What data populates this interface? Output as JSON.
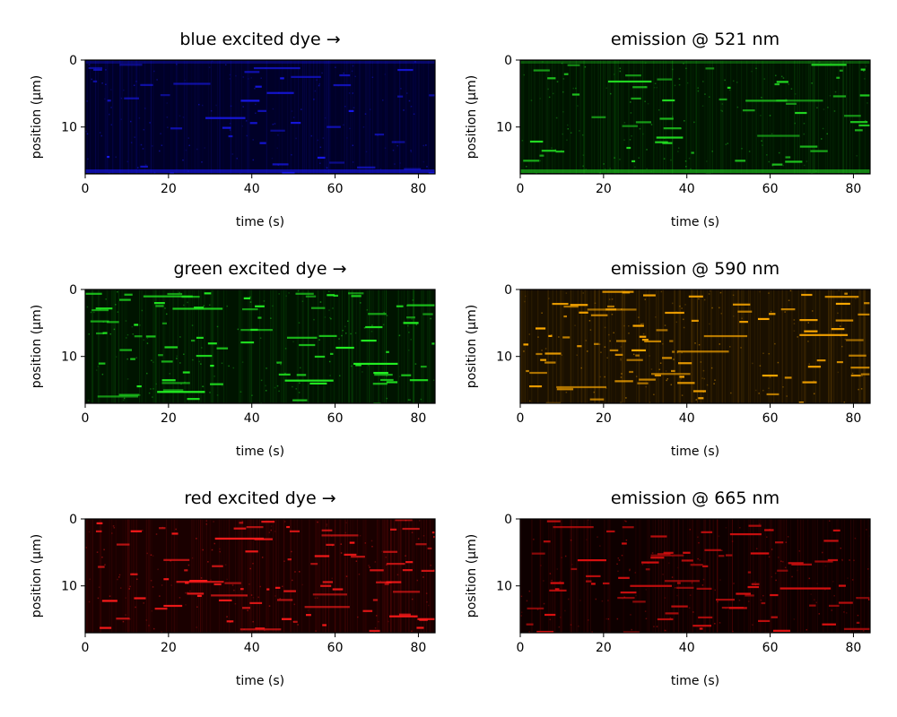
{
  "chart_data": [
    {
      "type": "heatmap",
      "title": "blue excited dye →",
      "xlabel": "time (s)",
      "ylabel": "position (μm)",
      "xlim": [
        0,
        84
      ],
      "ylim": [
        0,
        17
      ],
      "y_inverted": true,
      "xticks": [
        "0",
        "20",
        "40",
        "60",
        "80"
      ],
      "yticks": [
        "0",
        "10"
      ],
      "colormap_color": "#1a1aff",
      "background": "#000028",
      "grid": false
    },
    {
      "type": "heatmap",
      "title": "emission @ 521 nm",
      "xlabel": "time (s)",
      "ylabel": "position (μm)",
      "xlim": [
        0,
        84
      ],
      "ylim": [
        0,
        17
      ],
      "y_inverted": true,
      "xticks": [
        "0",
        "20",
        "40",
        "60",
        "80"
      ],
      "yticks": [
        "0",
        "10"
      ],
      "colormap_color": "#22dd22",
      "background": "#001400",
      "grid": false
    },
    {
      "type": "heatmap",
      "title": "green excited dye →",
      "xlabel": "time (s)",
      "ylabel": "position (μm)",
      "xlim": [
        0,
        84
      ],
      "ylim": [
        0,
        17
      ],
      "y_inverted": true,
      "xticks": [
        "0",
        "20",
        "40",
        "60",
        "80"
      ],
      "yticks": [
        "0",
        "10"
      ],
      "colormap_color": "#22ee22",
      "background": "#001400",
      "grid": false
    },
    {
      "type": "heatmap",
      "title": "emission @ 590 nm",
      "xlabel": "time (s)",
      "ylabel": "position (μm)",
      "xlim": [
        0,
        84
      ],
      "ylim": [
        0,
        17
      ],
      "y_inverted": true,
      "xticks": [
        "0",
        "20",
        "40",
        "60",
        "80"
      ],
      "yticks": [
        "0",
        "10"
      ],
      "colormap_color": "#ffaa00",
      "background": "#1a1000",
      "grid": false
    },
    {
      "type": "heatmap",
      "title": "red excited dye →",
      "xlabel": "time (s)",
      "ylabel": "position (μm)",
      "xlim": [
        0,
        84
      ],
      "ylim": [
        0,
        17
      ],
      "y_inverted": true,
      "xticks": [
        "0",
        "20",
        "40",
        "60",
        "80"
      ],
      "yticks": [
        "0",
        "10"
      ],
      "colormap_color": "#ff1a1a",
      "background": "#1a0000",
      "grid": false
    },
    {
      "type": "heatmap",
      "title": "emission @ 665 nm",
      "xlabel": "time (s)",
      "ylabel": "position (μm)",
      "xlim": [
        0,
        84
      ],
      "ylim": [
        0,
        17
      ],
      "y_inverted": true,
      "xticks": [
        "0",
        "20",
        "40",
        "60",
        "80"
      ],
      "yticks": [
        "0",
        "10"
      ],
      "colormap_color": "#e01010",
      "background": "#0e0000",
      "grid": false
    }
  ]
}
